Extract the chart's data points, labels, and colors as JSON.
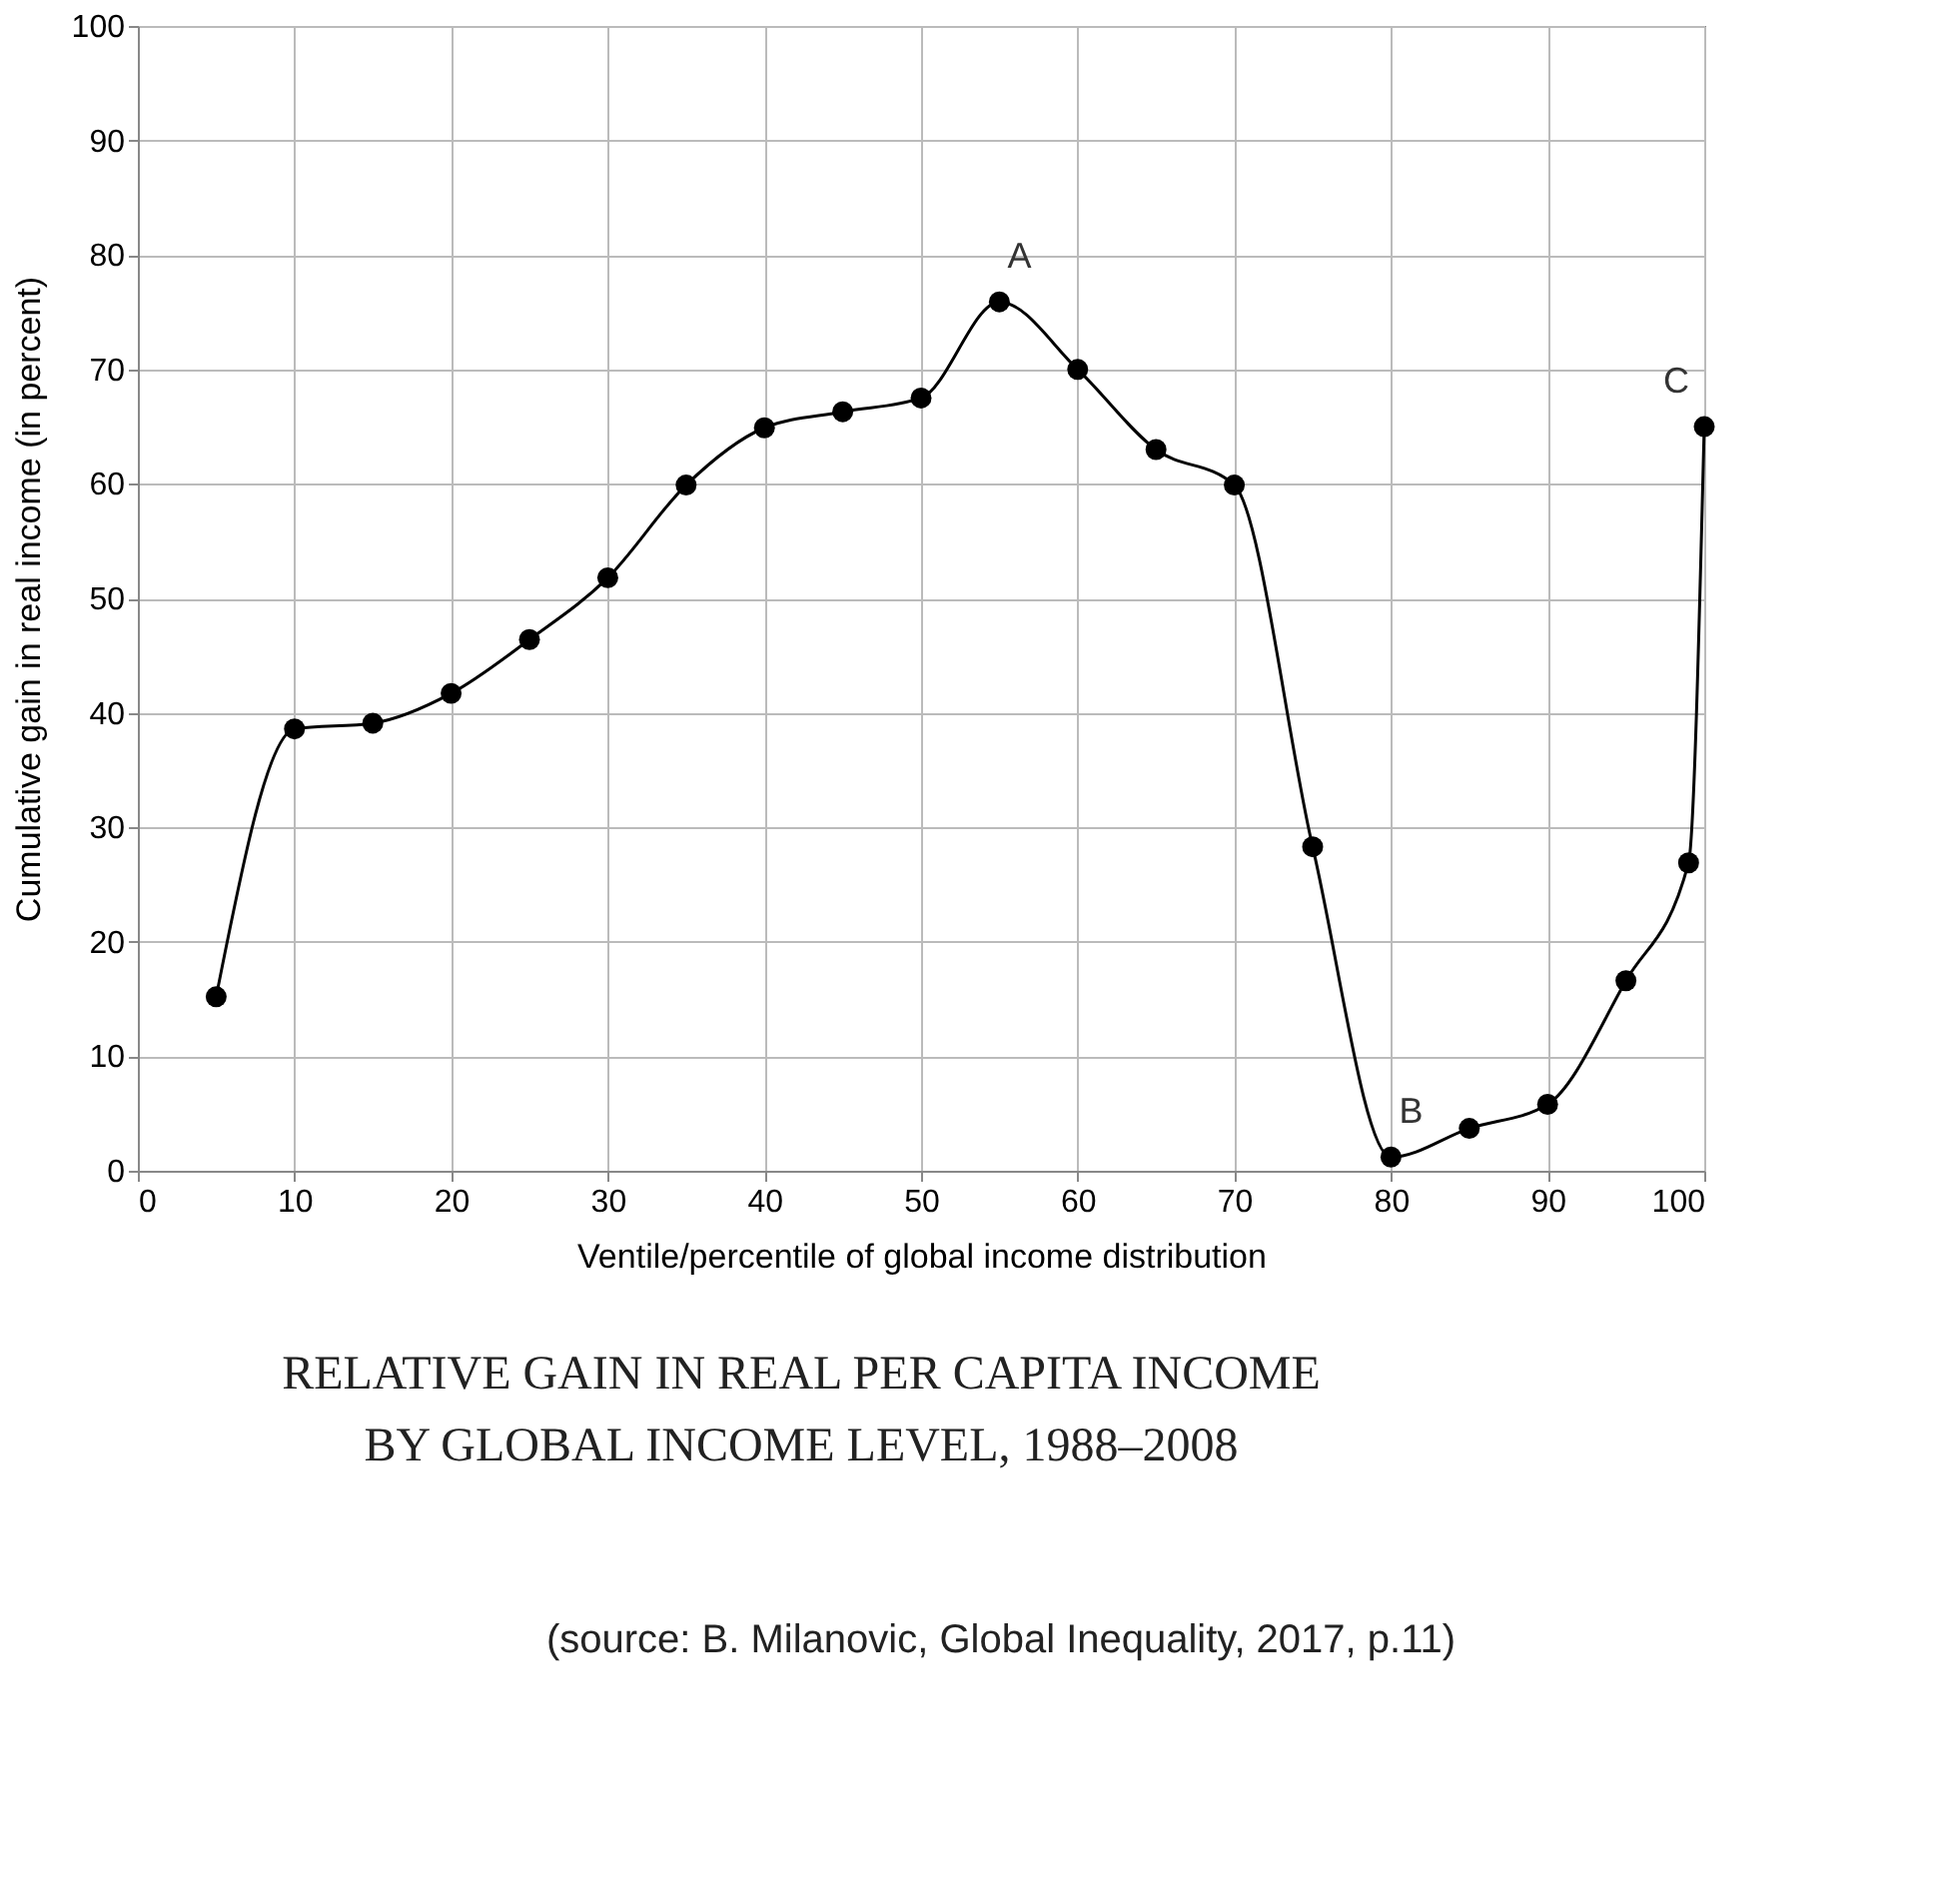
{
  "chart_data": {
    "type": "line",
    "title": "RELATIVE GAIN IN REAL PER CAPITA INCOME\nBY GLOBAL INCOME LEVEL, 1988–2008",
    "xlabel": "Ventile/percentile of global income distribution",
    "ylabel": "Cumulative gain in real income (in percent)",
    "x": [
      5,
      10,
      15,
      20,
      25,
      30,
      35,
      40,
      45,
      50,
      55,
      60,
      65,
      70,
      75,
      80,
      85,
      90,
      95,
      99,
      100
    ],
    "series": [
      {
        "color": "#000000",
        "values": [
          15.2,
          38.6,
          39.1,
          41.7,
          46.4,
          51.8,
          59.9,
          64.9,
          66.3,
          67.5,
          75.9,
          70.0,
          63.0,
          59.9,
          28.3,
          1.2,
          3.7,
          5.8,
          16.6,
          26.9,
          65.0
        ]
      }
    ],
    "xlim": [
      0,
      100
    ],
    "xticks": [
      0,
      10,
      20,
      30,
      40,
      50,
      60,
      70,
      80,
      90,
      100
    ],
    "ylim": [
      0,
      100
    ],
    "yticks": [
      0,
      10,
      20,
      30,
      40,
      50,
      60,
      70,
      80,
      90,
      100
    ],
    "grid": true,
    "marker": "circle",
    "line_style": "solid",
    "annotations": [
      {
        "text": "A",
        "x": 55,
        "y": 75.9
      },
      {
        "text": "B",
        "x": 80,
        "y": 1.2
      },
      {
        "text": "C",
        "x": 100,
        "y": 65.0
      },
      "(source: B. Milanovic, Global Inequality, 2017, p.11)"
    ]
  }
}
